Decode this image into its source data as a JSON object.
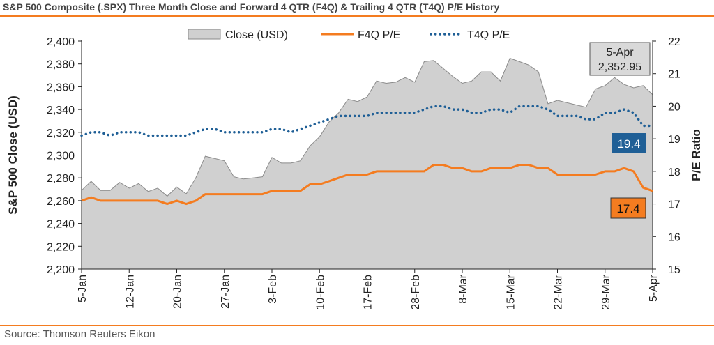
{
  "title": "S&P 500 Composite (.SPX) Three Month Close and Forward 4 QTR (F4Q) & Trailing 4 QTR (T4Q) P/E History",
  "source": "Source: Thomson Reuters Eikon",
  "colors": {
    "close_fill": "#d0d0d0",
    "close_stroke": "#8a8a8a",
    "f4q": "#f47c20",
    "t4q": "#1f5f96",
    "rule": "#f47c20"
  },
  "chart_data": {
    "type": "area",
    "ylabel_left": "S&P 500 Close (USD)",
    "ylabel_right": "P/E Ratio",
    "ylim_left": [
      2200,
      2400
    ],
    "ylim_right": [
      15,
      22
    ],
    "yticks_left": [
      "2,200",
      "2,220",
      "2,240",
      "2,260",
      "2,280",
      "2,300",
      "2,320",
      "2,340",
      "2,360",
      "2,380",
      "2,400"
    ],
    "yticks_right": [
      "15",
      "16",
      "17",
      "18",
      "19",
      "20",
      "21",
      "22"
    ],
    "xticks": [
      "5-Jan",
      "12-Jan",
      "20-Jan",
      "27-Jan",
      "3-Feb",
      "10-Feb",
      "17-Feb",
      "28-Feb",
      "8-Mar",
      "15-Mar",
      "22-Mar",
      "29-Mar",
      "5-Apr"
    ],
    "legend": [
      "Close (USD)",
      "F4Q P/E",
      "T4Q P/E"
    ],
    "series": [
      {
        "name": "Close (USD)",
        "type": "area",
        "values": [
          2269,
          2277,
          2269,
          2269,
          2276,
          2271,
          2275,
          2268,
          2271,
          2264,
          2272,
          2266,
          2280,
          2299,
          2297,
          2295,
          2281,
          2279,
          2280,
          2281,
          2298,
          2293,
          2293,
          2295,
          2308,
          2316,
          2329,
          2337,
          2349,
          2347,
          2351,
          2365,
          2363,
          2364,
          2368,
          2364,
          2382,
          2383,
          2376,
          2369,
          2363,
          2365,
          2373,
          2373,
          2365,
          2385,
          2382,
          2379,
          2373,
          2345,
          2348,
          2346,
          2344,
          2342,
          2358,
          2361,
          2368,
          2362,
          2359,
          2361,
          2353
        ]
      },
      {
        "name": "F4Q P/E",
        "type": "line",
        "values": [
          17.1,
          17.2,
          17.1,
          17.1,
          17.1,
          17.1,
          17.1,
          17.1,
          17.1,
          17.0,
          17.1,
          17.0,
          17.1,
          17.3,
          17.3,
          17.3,
          17.3,
          17.3,
          17.3,
          17.3,
          17.4,
          17.4,
          17.4,
          17.4,
          17.6,
          17.6,
          17.7,
          17.8,
          17.9,
          17.9,
          17.9,
          18.0,
          18.0,
          18.0,
          18.0,
          18.0,
          18.0,
          18.2,
          18.2,
          18.1,
          18.1,
          18.0,
          18.0,
          18.1,
          18.1,
          18.1,
          18.2,
          18.2,
          18.1,
          18.1,
          17.9,
          17.9,
          17.9,
          17.9,
          17.9,
          18.0,
          18.0,
          18.1,
          18.0,
          17.5,
          17.4
        ]
      },
      {
        "name": "T4Q P/E",
        "type": "line",
        "values": [
          19.1,
          19.2,
          19.2,
          19.1,
          19.2,
          19.2,
          19.2,
          19.1,
          19.1,
          19.1,
          19.1,
          19.1,
          19.2,
          19.3,
          19.3,
          19.2,
          19.2,
          19.2,
          19.2,
          19.2,
          19.3,
          19.3,
          19.2,
          19.3,
          19.4,
          19.5,
          19.6,
          19.7,
          19.7,
          19.7,
          19.7,
          19.8,
          19.8,
          19.8,
          19.8,
          19.8,
          19.9,
          20.0,
          20.0,
          19.9,
          19.9,
          19.8,
          19.8,
          19.9,
          19.9,
          19.8,
          20.0,
          20.0,
          20.0,
          19.9,
          19.7,
          19.7,
          19.7,
          19.6,
          19.6,
          19.8,
          19.8,
          19.9,
          19.8,
          19.4,
          19.4
        ]
      }
    ],
    "annotations": {
      "last_date": "5-Apr",
      "last_close": "2,352.95",
      "last_t4q": "19.4",
      "last_f4q": "17.4"
    }
  }
}
